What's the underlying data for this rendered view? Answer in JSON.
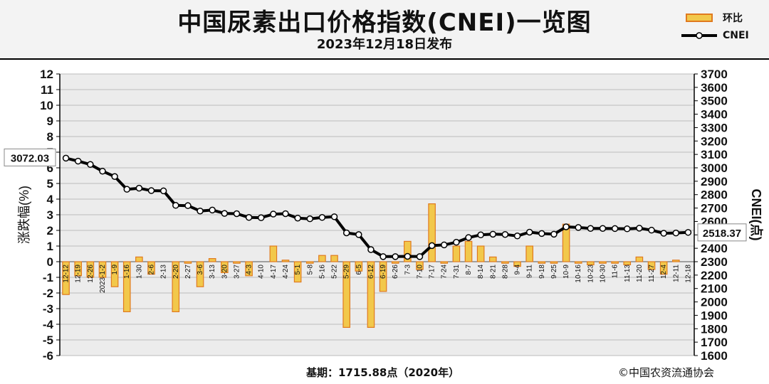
{
  "header": {
    "title": "中国尿素出口价格指数(CNEI)一览图",
    "subtitle": "2023年12月18日发布"
  },
  "footer": {
    "base_note": "基期：1715.88点（2020年）",
    "copyright": "©中国农资流通协会"
  },
  "colors": {
    "bar_fill": "#f2c84b",
    "bar_stroke": "#e07a1f",
    "line": "#000000",
    "marker": "#ffffff",
    "grid": "#bdbdbd",
    "plot_bg": "#ececec"
  },
  "chart_data": {
    "type": "bar+line",
    "categories": [
      "12-12",
      "12-19",
      "12-26",
      "2023-1-2",
      "1-9",
      "1-16",
      "1-30",
      "2-6",
      "2-13",
      "2-20",
      "2-27",
      "3-6",
      "3-13",
      "3-20",
      "3-27",
      "4-3",
      "4-10",
      "4-17",
      "4-24",
      "5-1",
      "5-8",
      "5-16",
      "5-22",
      "5-29",
      "6-5",
      "6-12",
      "6-19",
      "6-26",
      "7-3",
      "7-10",
      "7-17",
      "7-24",
      "7-31",
      "8-7",
      "8-14",
      "8-21",
      "8-28",
      "9-4",
      "9-11",
      "9-18",
      "9-25",
      "10-9",
      "10-16",
      "10-23",
      "10-30",
      "11-6",
      "11-13",
      "11-20",
      "11-27",
      "12-4",
      "12-11",
      "12-18"
    ],
    "series": [
      {
        "name": "环比",
        "type": "bar",
        "axis": "left",
        "values": [
          -2.1,
          -0.9,
          -1.0,
          -1.0,
          -1.6,
          -3.2,
          0.3,
          -0.8,
          0.0,
          -3.2,
          -0.1,
          -1.6,
          0.2,
          -0.7,
          -0.1,
          -0.9,
          0.0,
          1.0,
          0.1,
          -1.3,
          -0.1,
          0.4,
          0.4,
          -4.2,
          -0.6,
          -4.2,
          -1.9,
          -0.1,
          1.3,
          -0.5,
          3.7,
          -0.1,
          1.0,
          1.3,
          1.0,
          0.3,
          -0.1,
          -0.3,
          1.0,
          -0.1,
          -0.1,
          2.4,
          -0.1,
          -0.2,
          -0.1,
          -0.1,
          -0.2,
          0.3,
          -0.5,
          -0.8,
          0.1,
          0.0
        ]
      },
      {
        "name": "CNEI",
        "type": "line",
        "axis": "right",
        "values": [
          3072.03,
          3050,
          3025,
          2975,
          2935,
          2840,
          2848,
          2830,
          2828,
          2720,
          2718,
          2678,
          2685,
          2660,
          2658,
          2630,
          2628,
          2655,
          2658,
          2625,
          2620,
          2630,
          2635,
          2515,
          2502,
          2390,
          2338,
          2338,
          2340,
          2338,
          2420,
          2425,
          2445,
          2480,
          2500,
          2505,
          2503,
          2492,
          2520,
          2510,
          2505,
          2560,
          2555,
          2548,
          2548,
          2547,
          2545,
          2550,
          2535,
          2512,
          2514,
          2518.37
        ]
      }
    ],
    "y_left": {
      "label": "涨跌幅(%)",
      "min": -6,
      "max": 12,
      "ticks": [
        12,
        11,
        10,
        9,
        8,
        7,
        6,
        5,
        4,
        3,
        2,
        1,
        0,
        -1,
        -2,
        -3,
        -4,
        -5,
        -6
      ]
    },
    "y_right": {
      "label": "CNEI(点)",
      "min": 1600,
      "max": 3700,
      "ticks": [
        3700,
        3600,
        3500,
        3400,
        3300,
        3200,
        3100,
        3000,
        2900,
        2800,
        2700,
        2600,
        2500,
        2400,
        2300,
        2200,
        2100,
        2000,
        1900,
        1800,
        1700,
        1600
      ]
    },
    "annotations": {
      "first_value": "3072.03",
      "last_value": "2518.37"
    },
    "grid": true,
    "legend_position": "top-right"
  }
}
